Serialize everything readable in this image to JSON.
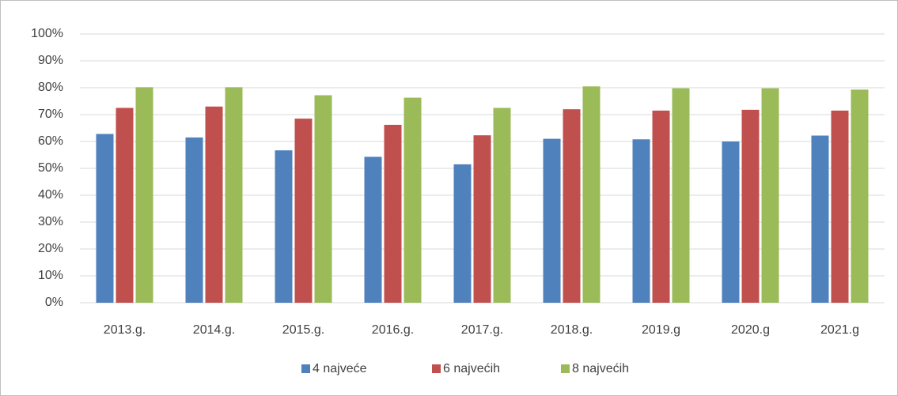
{
  "chart_data": {
    "type": "bar",
    "categories": [
      "2013.g.",
      "2014.g.",
      "2015.g.",
      "2016.g.",
      "2017.g.",
      "2018.g.",
      "2019.g",
      "2020.g",
      "2021.g"
    ],
    "series": [
      {
        "name": "4 najveće",
        "color": "#4f81bd",
        "values": [
          62.8,
          61.5,
          56.7,
          54.3,
          51.5,
          61,
          60.8,
          60,
          62.2
        ]
      },
      {
        "name": "6 najvećih",
        "color": "#c0504d",
        "values": [
          72.5,
          73,
          68.5,
          66.2,
          62.3,
          72,
          71.5,
          71.8,
          71.5
        ]
      },
      {
        "name": "8 najvećih",
        "color": "#9bbb59",
        "values": [
          80.2,
          80.2,
          77.2,
          76.3,
          72.5,
          80.5,
          79.8,
          79.8,
          79.3
        ]
      }
    ],
    "ylim": [
      0,
      100
    ],
    "yticks": [
      {
        "value": 0,
        "label": "0%"
      },
      {
        "value": 10,
        "label": "10%"
      },
      {
        "value": 20,
        "label": "20%"
      },
      {
        "value": 30,
        "label": "30%"
      },
      {
        "value": 40,
        "label": "40%"
      },
      {
        "value": 50,
        "label": "50%"
      },
      {
        "value": 60,
        "label": "60%"
      },
      {
        "value": 70,
        "label": "70%"
      },
      {
        "value": 80,
        "label": "80%"
      },
      {
        "value": 90,
        "label": "90%"
      },
      {
        "value": 100,
        "label": "100%"
      }
    ],
    "grid": true,
    "legend": "bottom"
  }
}
